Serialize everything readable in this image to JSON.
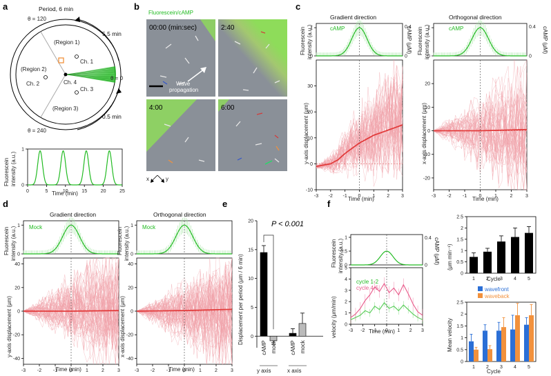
{
  "panel_labels": {
    "a": "a",
    "b": "b",
    "c": "c",
    "d": "d",
    "e": "e",
    "f": "f"
  },
  "panel_a": {
    "title": "Period, 6 min",
    "theta_120": "θ = 120",
    "theta_240": "θ = 240",
    "theta_0": "θ = 0",
    "time_top": "5.5 min",
    "time_bottom": "0.5 min",
    "regions": [
      "(Region 1)",
      "(Region 2)",
      "(Region 3)"
    ],
    "channels": [
      "Ch. 1",
      "Ch. 2",
      "Ch. 3",
      "Ch. 4"
    ],
    "ylabel_1": "Fluorescein",
    "ylabel_2": "intensity (a.u.)",
    "xlabel": "Time (min)"
  },
  "panel_b": {
    "header": "Fluorescein/cAMP",
    "times": [
      "00:00 (min:sec)",
      "2:40",
      "4:00",
      "6:00"
    ],
    "wave_1": "Wave",
    "wave_2": "propagation",
    "x": "x",
    "y": "y"
  },
  "panel_c": {
    "left_title": "Gradient direction",
    "right_title": "Orthogonal direction",
    "camp": "cAMP",
    "fl_1": "Fluorescein",
    "fl_2": "intensity (a.u.)",
    "camp_axis": "cAMP (μM)",
    "y_left": "y-axis displacement (μm)",
    "y_right": "x-axis displacement (μm)",
    "xlabel": "Time (min)"
  },
  "panel_d": {
    "left_title": "Gradient direction",
    "right_title": "Orthogonal direction",
    "mock": "Mock",
    "fl_1": "Fluorescein",
    "fl_2": "intensity (a.u.)",
    "y_left": "y-axis displacement (μm)",
    "y_right": "x-axis displacement (μm)",
    "xlabel": "Time (min)"
  },
  "panel_e": {
    "ylabel": "Displacement per period (μm / 6 min)",
    "pvalue": "P < 0.001",
    "group_y": "y axis",
    "group_x": "x axis"
  },
  "panel_f": {
    "fl_1": "Fluorescein",
    "fl_2": "intensity (a.u.)",
    "camp_axis": "cAMP (μM)",
    "vel_label": "velocity (μm/min)",
    "legend_c12": "cycle 1-2",
    "legend_c45": "cycle 4-5",
    "xlabel": "Time (min)",
    "mean_vel_top": "(μm min⁻¹)",
    "mean_vel": "Mean velocity",
    "cycle": "Cycle",
    "legend_front": "wavefront",
    "legend_back": "waveback"
  },
  "colors": {
    "green": "#22bb22",
    "red": "#e23b3b",
    "pink": "#f0a0a8",
    "blue": "#2b6fd6",
    "orange": "#f2913c",
    "cam_gray": "#8a9098"
  },
  "chart_data": [
    {
      "id": "a_trace",
      "type": "line",
      "title": "",
      "xlabel": "Time (min)",
      "ylabel": "Fluorescein intensity (a.u.)",
      "xlim": [
        0,
        25
      ],
      "ylim": [
        0,
        1
      ],
      "xticks": [
        0,
        5,
        10,
        15,
        20,
        25
      ],
      "yticks": [
        0,
        1
      ],
      "peaks": [
        3.3,
        9.4,
        15.5,
        21.6
      ],
      "peak_width_min": 0.9
    },
    {
      "id": "c_left",
      "type": "line",
      "title": "Gradient direction",
      "xlabel": "Time (min)",
      "ylabel": "y-axis displacement (μm)",
      "xlim": [
        -3,
        3
      ],
      "ylim": [
        -10,
        40
      ],
      "xticks": [
        -3,
        -2,
        -1,
        0,
        1,
        2,
        3
      ],
      "yticks": [
        -10,
        0,
        10,
        20,
        30
      ],
      "top_yticks": [
        0,
        1
      ],
      "top_right_ticks": [
        0,
        0.4
      ],
      "mean": {
        "x": [
          -3,
          -2,
          -1.5,
          -1,
          -0.5,
          0,
          0.5,
          1,
          1.5,
          2,
          2.5,
          3
        ],
        "y": [
          -1,
          0,
          1.5,
          4,
          6,
          8,
          9.5,
          11,
          12,
          13,
          14,
          15
        ]
      }
    },
    {
      "id": "c_right",
      "type": "line",
      "title": "Orthogonal direction",
      "xlabel": "Time (min)",
      "ylabel": "x-axis displacement (μm)",
      "xlim": [
        -3,
        3
      ],
      "ylim": [
        -25,
        30
      ],
      "xticks": [
        -3,
        -2,
        -1,
        0,
        1,
        2,
        3
      ],
      "yticks": [
        -20,
        -10,
        0,
        10,
        20
      ],
      "top_yticks": [
        0,
        1
      ],
      "top_right_ticks": [
        0,
        0.4
      ],
      "mean": {
        "x": [
          -3,
          0,
          3
        ],
        "y": [
          0,
          0,
          0.5
        ]
      }
    },
    {
      "id": "d_left",
      "type": "line",
      "title": "Gradient direction",
      "xlabel": "Time (min)",
      "ylabel": "y-axis displacement (μm)",
      "xlim": [
        -3,
        3
      ],
      "ylim": [
        -45,
        45
      ],
      "xticks": [
        -3,
        -2,
        -1,
        0,
        1,
        2,
        3
      ],
      "yticks": [
        -40,
        -20,
        0,
        20,
        40
      ],
      "top_yticks": [
        0,
        1
      ],
      "mean": {
        "x": [
          -3,
          0,
          3
        ],
        "y": [
          0,
          0,
          0.5
        ]
      }
    },
    {
      "id": "d_right",
      "type": "line",
      "title": "Orthogonal direction",
      "xlabel": "Time (min)",
      "ylabel": "x-axis displacement (μm)",
      "xlim": [
        -3,
        3
      ],
      "ylim": [
        -45,
        45
      ],
      "xticks": [
        -3,
        -2,
        -1,
        0,
        1,
        2,
        3
      ],
      "yticks": [
        -40,
        -20,
        0,
        20,
        40
      ],
      "top_yticks": [
        0,
        1
      ],
      "mean": {
        "x": [
          -3,
          0,
          3
        ],
        "y": [
          0,
          0.5,
          1.5
        ]
      }
    },
    {
      "id": "e_bar",
      "type": "bar",
      "title": "",
      "ylabel": "Displacement per period (μm / 6 min)",
      "ylim": [
        -2,
        20
      ],
      "yticks": [
        0,
        5,
        10,
        15,
        20
      ],
      "categories": [
        "cAMP",
        "mock",
        "cAMP",
        "mock"
      ],
      "groups": [
        "y axis",
        "y axis",
        "x axis",
        "x axis"
      ],
      "values": [
        14.5,
        -0.8,
        0.5,
        2.2
      ],
      "errors": [
        1.2,
        0.6,
        0.8,
        1.8
      ],
      "bar_colors": [
        "#000000",
        "#bbbbbb",
        "#000000",
        "#bbbbbb"
      ]
    },
    {
      "id": "f_velocity",
      "type": "line",
      "title": "",
      "xlabel": "Time (min)",
      "ylabel": "velocity (μm/min)",
      "xlim": [
        -3,
        3
      ],
      "ylim": [
        0,
        5
      ],
      "xticks": [
        -3,
        -2,
        -1,
        0,
        1,
        2,
        3
      ],
      "yticks": [
        0,
        1,
        2,
        3,
        4,
        5
      ],
      "top_yticks": [
        0,
        0.5,
        1
      ],
      "top_right_ticks": [
        0,
        0.4
      ],
      "series": [
        {
          "name": "cycle 1-2",
          "x": [
            -3,
            -2.6,
            -2.2,
            -1.8,
            -1.4,
            -1.0,
            -0.6,
            -0.2,
            0.2,
            0.6,
            1.0,
            1.4,
            1.8,
            2.2,
            2.6,
            3
          ],
          "y": [
            0.4,
            0.6,
            0.8,
            1.2,
            1.0,
            1.6,
            1.3,
            1.9,
            1.4,
            1.6,
            1.2,
            1.7,
            1.3,
            0.9,
            0.6,
            0.4
          ]
        },
        {
          "name": "cycle 4-5",
          "x": [
            -3,
            -2.6,
            -2.2,
            -1.8,
            -1.4,
            -1.0,
            -0.6,
            -0.2,
            0.2,
            0.6,
            1.0,
            1.4,
            1.8,
            2.2,
            2.6,
            3
          ],
          "y": [
            0.6,
            0.9,
            1.4,
            2.1,
            2.6,
            3.3,
            2.9,
            3.6,
            2.8,
            3.2,
            2.6,
            3.5,
            2.7,
            1.8,
            1.1,
            0.8
          ]
        }
      ]
    },
    {
      "id": "f_mean_velocity",
      "type": "bar",
      "title": "",
      "xlabel": "Cycle",
      "ylabel": "Mean velocity (μm min⁻¹)",
      "ylim": [
        0,
        2.5
      ],
      "yticks": [
        0,
        0.5,
        1,
        1.5,
        2,
        2.5
      ],
      "categories": [
        "1",
        "2",
        "3",
        "4",
        "5"
      ],
      "values": [
        0.72,
        0.95,
        1.4,
        1.6,
        1.78
      ],
      "errors": [
        0.18,
        0.15,
        0.25,
        0.4,
        0.28
      ]
    },
    {
      "id": "f_front_back",
      "type": "bar",
      "title": "",
      "xlabel": "Cycle",
      "ylabel": "",
      "ylim": [
        0,
        2.5
      ],
      "yticks": [
        0,
        0.5,
        1,
        1.5,
        2,
        2.5
      ],
      "categories": [
        "1",
        "2",
        "3",
        "4",
        "5"
      ],
      "series": [
        {
          "name": "wavefront",
          "values": [
            0.85,
            1.3,
            1.3,
            1.35,
            1.55
          ],
          "errors": [
            0.3,
            0.25,
            0.35,
            0.6,
            0.3
          ]
        },
        {
          "name": "waveback",
          "values": [
            0.5,
            0.52,
            1.45,
            1.95,
            1.95
          ],
          "errors": [
            0.1,
            0.15,
            0.4,
            0.5,
            0.45
          ]
        }
      ]
    }
  ]
}
